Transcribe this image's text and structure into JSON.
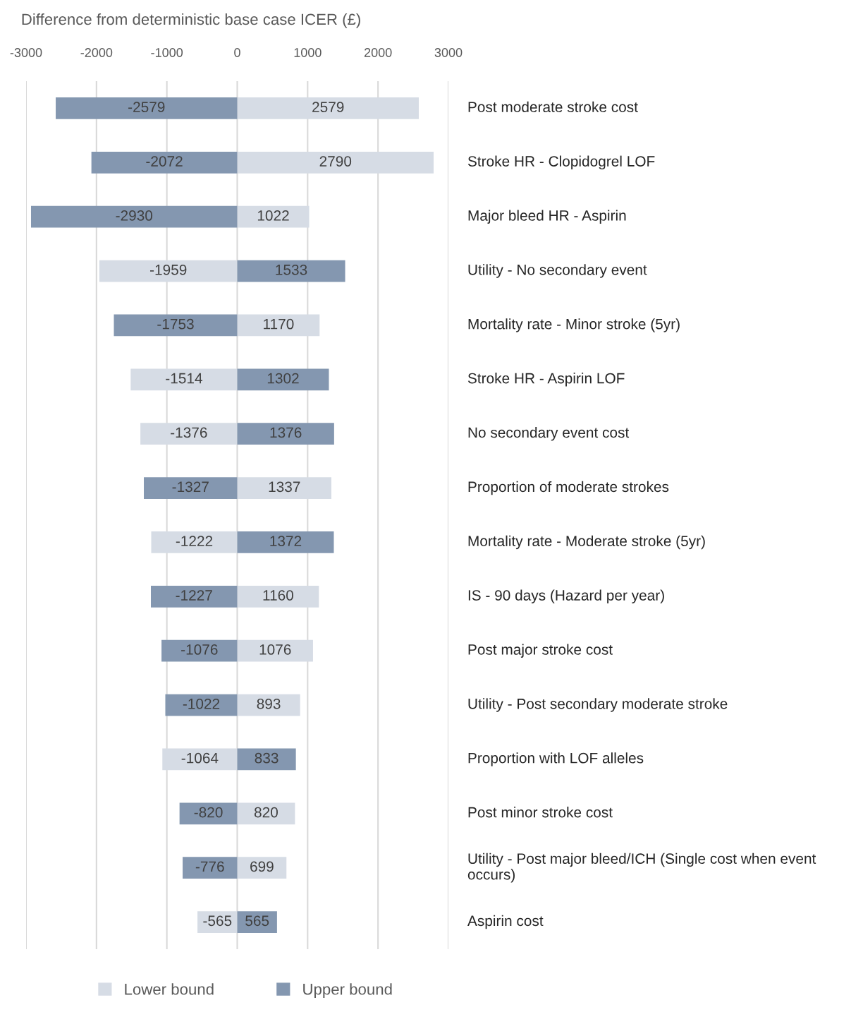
{
  "chart_data": {
    "type": "bar",
    "orientation": "horizontal",
    "xlabel": "Difference from deterministic base case ICER (£)",
    "categories": [
      "Post moderate stroke cost",
      "Stroke HR - Clopidogrel LOF",
      "Major bleed HR - Aspirin",
      "Utility - No secondary event",
      "Mortality rate - Minor stroke (5yr)",
      "Stroke HR - Aspirin LOF",
      "No secondary event cost",
      "Proportion of moderate strokes",
      "Mortality rate - Moderate stroke (5yr)",
      "IS - 90 days (Hazard per year)",
      "Post major stroke cost",
      "Utility - Post secondary moderate stroke",
      "Proportion with LOF alleles",
      "Post minor stroke cost",
      "Utility - Post major bleed/ICH (Single cost when event occurs)",
      "Aspirin cost"
    ],
    "series": [
      {
        "name": "Lower bound",
        "color": "#d6dce5",
        "values": [
          2579,
          2790,
          1022,
          -1959,
          1170,
          -1514,
          -1376,
          1337,
          -1222,
          1160,
          1076,
          893,
          -1064,
          820,
          699,
          -565
        ]
      },
      {
        "name": "Upper bound",
        "color": "#8497b0",
        "values": [
          -2579,
          -2072,
          -2930,
          1533,
          -1753,
          1302,
          1376,
          -1327,
          1372,
          -1227,
          -1076,
          -1022,
          833,
          -820,
          -776,
          565
        ]
      }
    ],
    "xlim": [
      -3000,
      3000
    ],
    "xticks": [
      -3000,
      -2000,
      -1000,
      0,
      1000,
      2000,
      3000
    ],
    "stacked": true,
    "grid": "x",
    "legend": "bottom",
    "data_labels": true
  }
}
